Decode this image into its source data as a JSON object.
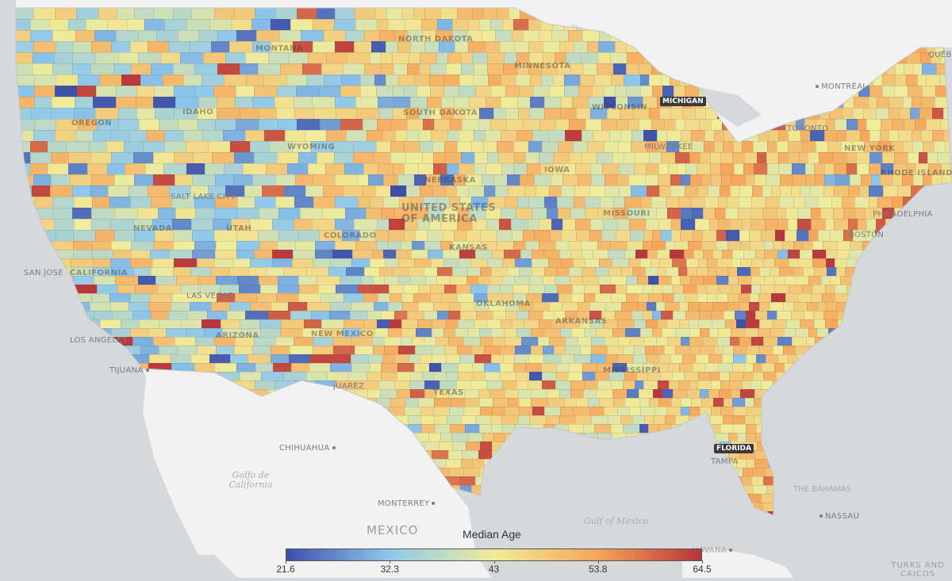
{
  "map": {
    "title": "Median Age",
    "legend": {
      "title": "Median Age",
      "min": 21.6,
      "max": 64.5,
      "ticks": [
        "21.6",
        "32.3",
        "43",
        "53.8",
        "64.5"
      ],
      "colors": [
        "#3d4fa8",
        "#8ec8ec",
        "#f0ec9a",
        "#f6a55a",
        "#b7343b"
      ]
    },
    "colors": {
      "water": "#d6d9dc",
      "land": "#f2f2f2",
      "border": "#4a4a4a"
    },
    "labels": {
      "states": [
        "MONTANA",
        "NORTH DAKOTA",
        "SOUTH DAKOTA",
        "IDAHO",
        "OREGON",
        "WYOMING",
        "NEBRASKA",
        "NEVADA",
        "COLORADO",
        "KANSAS",
        "UTAH",
        "CALIFORNIA",
        "ARIZONA",
        "NEW MEXICO",
        "MINNESOTA",
        "IOWA",
        "MISSOURI",
        "MISSISSIPPI",
        "TEXAS",
        "NEW YORK",
        "RHODE ISLAND",
        "UNITED STATES OF AMERICA",
        "WISCONSIN",
        "OKLAHOMA",
        "ARKANSAS"
      ],
      "cities": [
        "MONTRÉAL",
        "TORONTO",
        "SALT LAKE CITY",
        "SAN JOSE",
        "LOS ANGELES",
        "TIJUANA",
        "CHIHUAHUA",
        "MONTERREY",
        "MILWAUKEE",
        "PHILADELPHIA",
        "BOSTON",
        "TAMPA",
        "NASSAU",
        "LAS VEGAS",
        "JUAREZ",
        "QUÉBEC",
        "HAVANA"
      ],
      "water": [
        "Golfo de California",
        "Gulf of Mexico",
        "THE BAHAMAS"
      ],
      "countries": [
        "MEXICO",
        "TURKS AND CAICOS"
      ],
      "highlights": [
        "MICHIGAN",
        "FLORIDA"
      ]
    }
  }
}
